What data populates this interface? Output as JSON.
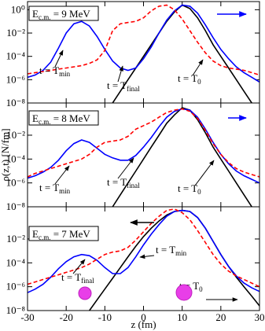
{
  "chart_data": [
    {
      "type": "line",
      "log_y": true,
      "label": [
        "E",
        "c.m.",
        " = 9 MeV"
      ],
      "x": [
        -30,
        -28,
        -26,
        -24,
        -22,
        -20,
        -18,
        -16,
        -14,
        -12,
        -10,
        -8,
        -6,
        -4,
        -2,
        0,
        2,
        4,
        6,
        8,
        10,
        12,
        14,
        16,
        18,
        20,
        22,
        24,
        26,
        28,
        30
      ],
      "xlim": [
        -30,
        30
      ],
      "xticks": [
        -30,
        -20,
        -10,
        0,
        10,
        20,
        30
      ],
      "ylim": [
        1e-08,
        5
      ],
      "yticks": [
        {
          "value": 1,
          "label": "10⁰"
        },
        {
          "value": 0.01,
          "label": "10⁻²"
        },
        {
          "value": 0.0001,
          "label": "10⁻⁴"
        },
        {
          "value": 1e-06,
          "label": "10⁻⁶"
        },
        {
          "value": 1e-08,
          "label": "10⁻⁸"
        }
      ],
      "series": [
        {
          "color": "#000000",
          "dashed": false,
          "values": [
            null,
            null,
            null,
            null,
            null,
            null,
            null,
            null,
            null,
            null,
            null,
            1e-08,
            1e-07,
            1e-06,
            1e-05,
            0.0001,
            0.001,
            0.01,
            0.1,
            0.63,
            2.5,
            1.26,
            0.2,
            0.016,
            0.001,
            0.0001,
            1e-05,
            1e-06,
            1e-07,
            1e-08,
            null
          ]
        },
        {
          "color": "#0000ff",
          "dashed": false,
          "values": [
            1.6e-06,
            2.5e-06,
            6.3e-06,
            3.2e-05,
            0.0005,
            0.01,
            0.063,
            0.1,
            0.04,
            0.005,
            0.0004,
            4e-05,
            1e-05,
            6.3e-06,
            1e-05,
            6.3e-05,
            0.00063,
            0.01,
            0.126,
            0.8,
            2.5,
            2,
            0.5,
            0.05,
            0.004,
            0.0004,
            6.3e-05,
            1.26e-05,
            4e-06,
            1.6e-06,
            6.3e-07
          ]
        },
        {
          "color": "#ff0000",
          "dashed": true,
          "values": [
            3.2e-06,
            4e-06,
            5e-06,
            6.3e-06,
            8e-06,
            1e-05,
            1.26e-05,
            1.6e-05,
            2.5e-05,
            5e-05,
            0.00032,
            0.016,
            0.063,
            0.08,
            0.1,
            0.2,
            0.8,
            2,
            2.5,
            1,
            0.16,
            0.016,
            0.0016,
            0.0002,
            4e-05,
            1.6e-05,
            1e-05,
            8e-06,
            6.3e-06,
            4e-06,
            2.5e-06
          ]
        }
      ],
      "annotations": [
        {
          "text": "t = T",
          "sub": "min"
        },
        {
          "text": "t = T",
          "sub": "final"
        },
        {
          "text": "t = T",
          "sub": "0"
        }
      ]
    },
    {
      "type": "line",
      "log_y": true,
      "label": [
        "E",
        "c.m.",
        " = 8 MeV"
      ],
      "ylabel": "ρ(z,t) [N/fm]",
      "x": [
        -30,
        -28,
        -26,
        -24,
        -22,
        -20,
        -18,
        -16,
        -14,
        -12,
        -10,
        -8,
        -6,
        -4,
        -2,
        0,
        2,
        4,
        6,
        8,
        10,
        12,
        14,
        16,
        18,
        20,
        22,
        24,
        26,
        28,
        30
      ],
      "xlim": [
        -30,
        30
      ],
      "xticks": [
        -30,
        -20,
        -10,
        0,
        10,
        20,
        30
      ],
      "ylim": [
        1e-08,
        5
      ],
      "yticks": [
        {
          "value": 0.01,
          "label": "10⁻²"
        },
        {
          "value": 0.0001,
          "label": "10⁻⁴"
        },
        {
          "value": 1e-06,
          "label": "10⁻⁶"
        },
        {
          "value": 1e-08,
          "label": "10⁻⁸"
        }
      ],
      "series": [
        {
          "color": "#000000",
          "dashed": false,
          "values": [
            null,
            null,
            null,
            null,
            null,
            null,
            null,
            null,
            null,
            null,
            null,
            1e-08,
            1e-07,
            1e-06,
            1e-05,
            0.0001,
            0.001,
            0.01,
            0.1,
            0.5,
            2,
            1.26,
            0.2,
            0.016,
            0.001,
            0.0001,
            1e-05,
            1e-06,
            1e-07,
            1e-08,
            null
          ]
        },
        {
          "color": "#0000ff",
          "dashed": false,
          "values": [
            2.5e-06,
            4e-06,
            8e-06,
            2e-05,
            8e-05,
            0.0005,
            0.002,
            0.004,
            0.0025,
            0.0008,
            0.00025,
            0.000126,
            8e-05,
            8e-05,
            0.0002,
            0.001,
            0.0063,
            0.05,
            0.32,
            1,
            1.6,
            1.26,
            0.32,
            0.032,
            0.0025,
            0.00025,
            4e-05,
            1e-05,
            4e-06,
            2e-06,
            1e-06
          ]
        },
        {
          "color": "#ff0000",
          "dashed": true,
          "values": [
            3.2e-06,
            6.3e-06,
            1e-05,
            1.6e-05,
            2.5e-05,
            4e-05,
            6.3e-05,
            0.0001,
            0.00025,
            0.001,
            0.0025,
            0.0032,
            0.004,
            0.008,
            0.032,
            0.063,
            0.126,
            0.32,
            0.8,
            1.26,
            1.6,
            1,
            0.25,
            0.025,
            0.002,
            0.00025,
            5e-05,
            1.6e-05,
            8e-06,
            5e-06,
            3.2e-06
          ]
        }
      ],
      "annotations": [
        {
          "text": "t = T",
          "sub": "min"
        },
        {
          "text": "t = T",
          "sub": "final"
        },
        {
          "text": "t = T",
          "sub": "0"
        }
      ]
    },
    {
      "type": "line",
      "log_y": true,
      "label": [
        "E",
        "c.m.",
        " = 7 MeV"
      ],
      "xlabel": "z (fm)",
      "x": [
        -30,
        -28,
        -26,
        -24,
        -22,
        -20,
        -18,
        -16,
        -14,
        -12,
        -10,
        -8,
        -6,
        -4,
        -2,
        0,
        2,
        4,
        6,
        8,
        10,
        12,
        14,
        16,
        18,
        20,
        22,
        24,
        26,
        28,
        30
      ],
      "xlim": [
        -30,
        30
      ],
      "xticks": [
        -30,
        -20,
        -10,
        0,
        10,
        20,
        30
      ],
      "ylim": [
        1e-08,
        5
      ],
      "yticks": [
        {
          "value": 0.01,
          "label": "10⁻²"
        },
        {
          "value": 0.0001,
          "label": "10⁻⁴"
        },
        {
          "value": 1e-06,
          "label": "10⁻⁶"
        },
        {
          "value": 1e-08,
          "label": "10⁻⁸"
        }
      ],
      "series": [
        {
          "color": "#000000",
          "dashed": false,
          "values": [
            null,
            null,
            null,
            null,
            null,
            null,
            null,
            null,
            1e-08,
            8e-08,
            6.3e-07,
            5e-06,
            4e-05,
            0.00032,
            0.0025,
            0.016,
            0.08,
            0.32,
            1,
            2,
            2.5,
            2,
            0.63,
            0.08,
            0.0063,
            0.0005,
            5e-05,
            6.3e-06,
            1e-06,
            1.6e-07,
            2.5e-08
          ]
        },
        {
          "color": "#0000ff",
          "dashed": false,
          "values": [
            3.2e-07,
            6.3e-07,
            1.6e-06,
            6.3e-06,
            3.2e-05,
            0.000126,
            0.00032,
            0.0005,
            0.0004,
            0.00016,
            4e-05,
            1.26e-05,
            1.26e-05,
            4e-05,
            0.00032,
            0.0032,
            0.025,
            0.16,
            0.8,
            2,
            2.5,
            2,
            0.63,
            0.08,
            0.0063,
            0.0005,
            5e-05,
            8e-06,
            2e-06,
            8e-07,
            4e-07
          ]
        },
        {
          "color": "#ff0000",
          "dashed": true,
          "values": [
            1.6e-06,
            2.5e-06,
            4e-06,
            6.3e-06,
            1e-05,
            1.6e-05,
            2.5e-05,
            4e-05,
            8e-05,
            0.0002,
            0.0005,
            0.0008,
            0.001,
            0.002,
            0.008,
            0.04,
            0.2,
            0.8,
            2.5,
            3.2,
            1.6,
            0.4,
            0.05,
            0.005,
            0.0005,
            8e-05,
            2e-05,
            8e-06,
            4e-06,
            2e-06,
            1e-06
          ]
        }
      ],
      "annotations": [
        {
          "text": "t = T",
          "sub": "min"
        },
        {
          "text": "t = T",
          "sub": "final"
        },
        {
          "text": "t = T",
          "sub": "0"
        }
      ]
    }
  ]
}
